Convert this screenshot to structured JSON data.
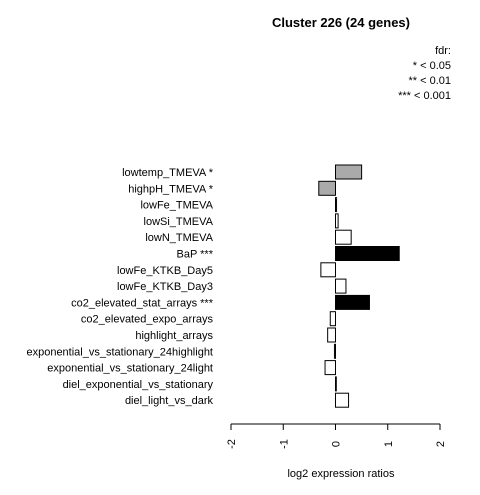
{
  "chart_data": {
    "type": "bar",
    "orientation": "horizontal",
    "title": "Cluster 226 (24 genes)",
    "xlabel": "log2 expression ratios",
    "ylabel": "",
    "xlim": [
      -2,
      2
    ],
    "xticks": [
      "-2",
      "-1",
      "0",
      "1",
      "2"
    ],
    "tick_values": [
      -2,
      -1,
      0,
      1,
      2
    ],
    "legend": {
      "placement": "top-right",
      "lines": [
        "fdr:",
        "* < 0.05",
        "** < 0.01",
        "*** < 0.001"
      ]
    },
    "categories": [
      "lowtemp_TMEVA *",
      "highpH_TMEVA *",
      "lowFe_TMEVA",
      "lowSi_TMEVA",
      "lowN_TMEVA",
      "BaP ***",
      "lowFe_KTKB_Day5",
      "lowFe_KTKB_Day3",
      "co2_elevated_stat_arrays ***",
      "co2_elevated_expo_arrays",
      "highlight_arrays",
      "exponential_vs_stationary_24highlight",
      "exponential_vs_stationary_24light",
      "diel_exponential_vs_stationary",
      "diel_light_vs_dark"
    ],
    "values": [
      0.5,
      -0.32,
      0.02,
      0.05,
      0.3,
      1.22,
      -0.28,
      0.2,
      0.65,
      -0.1,
      -0.15,
      -0.02,
      -0.2,
      0.0,
      0.25
    ],
    "fill_colors": [
      "#aaaaaa",
      "#aaaaaa",
      "#ffffff",
      "#ffffff",
      "#ffffff",
      "#000000",
      "#ffffff",
      "#ffffff",
      "#000000",
      "#ffffff",
      "#ffffff",
      "#ffffff",
      "#ffffff",
      "#ffffff",
      "#ffffff"
    ]
  }
}
